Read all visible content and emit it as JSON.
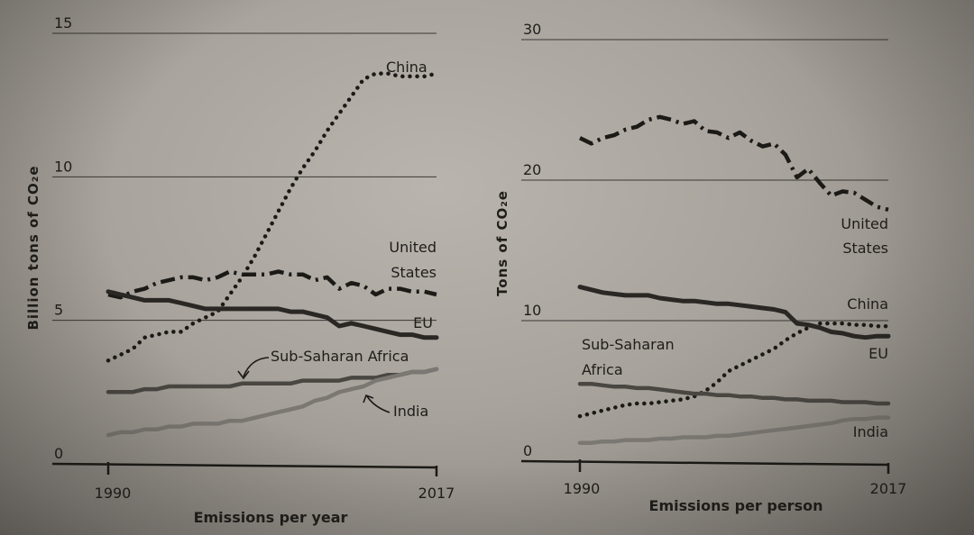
{
  "chart_data": [
    {
      "type": "line",
      "xlabel": "Emissions per year",
      "ylabel": "Billion tons of CO₂e",
      "ylim": [
        0,
        15
      ],
      "yticks": [
        "0",
        "5",
        "10",
        "15"
      ],
      "xticks": [
        "1990",
        "2017"
      ],
      "grid": true,
      "series": [
        {
          "name": "China",
          "style": "dotted",
          "x": [
            1990,
            1991,
            1992,
            1993,
            1994,
            1995,
            1996,
            1997,
            1998,
            1999,
            2000,
            2001,
            2002,
            2003,
            2004,
            2005,
            2006,
            2007,
            2008,
            2009,
            2010,
            2011,
            2012,
            2013,
            2014,
            2015,
            2016,
            2017
          ],
          "values": [
            3.6,
            3.8,
            4.0,
            4.4,
            4.5,
            4.6,
            4.6,
            4.9,
            5.1,
            5.3,
            5.9,
            6.5,
            7.2,
            8.0,
            8.8,
            9.6,
            10.3,
            10.9,
            11.6,
            12.2,
            12.8,
            13.4,
            13.6,
            13.6,
            13.5,
            13.5,
            13.5,
            13.6
          ]
        },
        {
          "name": "United\nStates",
          "style": "dash-dot",
          "x": [
            1990,
            1991,
            1992,
            1993,
            1994,
            1995,
            1996,
            1997,
            1998,
            1999,
            2000,
            2001,
            2002,
            2003,
            2004,
            2005,
            2006,
            2007,
            2008,
            2009,
            2010,
            2011,
            2012,
            2013,
            2014,
            2015,
            2016,
            2017
          ],
          "values": [
            5.9,
            5.8,
            6.0,
            6.1,
            6.3,
            6.4,
            6.5,
            6.5,
            6.4,
            6.5,
            6.7,
            6.6,
            6.6,
            6.6,
            6.7,
            6.6,
            6.6,
            6.4,
            6.5,
            6.1,
            6.3,
            6.2,
            5.9,
            6.1,
            6.1,
            6.0,
            6.0,
            5.9
          ]
        },
        {
          "name": "EU",
          "style": "solid-thick",
          "x": [
            1990,
            1991,
            1992,
            1993,
            1994,
            1995,
            1996,
            1997,
            1998,
            1999,
            2000,
            2001,
            2002,
            2003,
            2004,
            2005,
            2006,
            2007,
            2008,
            2009,
            2010,
            2011,
            2012,
            2013,
            2014,
            2015,
            2016,
            2017
          ],
          "values": [
            6.0,
            5.9,
            5.8,
            5.7,
            5.7,
            5.7,
            5.6,
            5.5,
            5.4,
            5.4,
            5.4,
            5.4,
            5.4,
            5.4,
            5.4,
            5.3,
            5.3,
            5.2,
            5.1,
            4.8,
            4.9,
            4.8,
            4.7,
            4.6,
            4.5,
            4.5,
            4.4,
            4.4
          ]
        },
        {
          "name": "Sub-Saharan Africa",
          "style": "solid-medium",
          "x": [
            1990,
            1991,
            1992,
            1993,
            1994,
            1995,
            1996,
            1997,
            1998,
            1999,
            2000,
            2001,
            2002,
            2003,
            2004,
            2005,
            2006,
            2007,
            2008,
            2009,
            2010,
            2011,
            2012,
            2013,
            2014,
            2015,
            2016,
            2017
          ],
          "values": [
            2.5,
            2.5,
            2.5,
            2.6,
            2.6,
            2.7,
            2.7,
            2.7,
            2.7,
            2.7,
            2.7,
            2.8,
            2.8,
            2.8,
            2.8,
            2.8,
            2.9,
            2.9,
            2.9,
            2.9,
            3.0,
            3.0,
            3.0,
            3.1,
            3.1,
            3.2,
            3.2,
            3.3
          ]
        },
        {
          "name": "India",
          "style": "solid-light",
          "x": [
            1990,
            1991,
            1992,
            1993,
            1994,
            1995,
            1996,
            1997,
            1998,
            1999,
            2000,
            2001,
            2002,
            2003,
            2004,
            2005,
            2006,
            2007,
            2008,
            2009,
            2010,
            2011,
            2012,
            2013,
            2014,
            2015,
            2016,
            2017
          ],
          "values": [
            1.0,
            1.1,
            1.1,
            1.2,
            1.2,
            1.3,
            1.3,
            1.4,
            1.4,
            1.4,
            1.5,
            1.5,
            1.6,
            1.7,
            1.8,
            1.9,
            2.0,
            2.2,
            2.3,
            2.5,
            2.6,
            2.7,
            2.9,
            3.0,
            3.1,
            3.2,
            3.2,
            3.3
          ]
        }
      ]
    },
    {
      "type": "line",
      "xlabel": "Emissions per person",
      "ylabel": "Tons of CO₂e",
      "ylim": [
        0,
        30
      ],
      "yticks": [
        "0",
        "10",
        "20",
        "30"
      ],
      "xticks": [
        "1990",
        "2017"
      ],
      "grid": true,
      "series": [
        {
          "name": "United\nStates",
          "style": "dash-dot",
          "x": [
            1990,
            1991,
            1992,
            1993,
            1994,
            1995,
            1996,
            1997,
            1998,
            1999,
            2000,
            2001,
            2002,
            2003,
            2004,
            2005,
            2006,
            2007,
            2008,
            2009,
            2010,
            2011,
            2012,
            2013,
            2014,
            2015,
            2016,
            2017
          ],
          "values": [
            23.0,
            22.6,
            23.0,
            23.2,
            23.6,
            23.8,
            24.3,
            24.5,
            24.3,
            24.0,
            24.2,
            23.5,
            23.4,
            23.0,
            23.4,
            22.8,
            22.4,
            22.6,
            21.8,
            20.2,
            20.8,
            19.8,
            18.9,
            19.2,
            19.1,
            18.6,
            18.1,
            17.9
          ]
        },
        {
          "name": "China",
          "style": "dotted",
          "x": [
            1990,
            1991,
            1992,
            1993,
            1994,
            1995,
            1996,
            1997,
            1998,
            1999,
            2000,
            2001,
            2002,
            2003,
            2004,
            2005,
            2006,
            2007,
            2008,
            2009,
            2010,
            2011,
            2012,
            2013,
            2014,
            2015,
            2016,
            2017
          ],
          "values": [
            3.2,
            3.4,
            3.6,
            3.8,
            4.0,
            4.1,
            4.1,
            4.2,
            4.3,
            4.4,
            4.6,
            5.0,
            5.6,
            6.4,
            6.8,
            7.2,
            7.6,
            8.0,
            8.6,
            9.1,
            9.5,
            9.8,
            9.8,
            9.8,
            9.7,
            9.7,
            9.6,
            9.6
          ]
        },
        {
          "name": "EU",
          "style": "solid-thick",
          "x": [
            1990,
            1991,
            1992,
            1993,
            1994,
            1995,
            1996,
            1997,
            1998,
            1999,
            2000,
            2001,
            2002,
            2003,
            2004,
            2005,
            2006,
            2007,
            2008,
            2009,
            2010,
            2011,
            2012,
            2013,
            2014,
            2015,
            2016,
            2017
          ],
          "values": [
            12.4,
            12.2,
            12.0,
            11.9,
            11.8,
            11.8,
            11.8,
            11.6,
            11.5,
            11.4,
            11.4,
            11.3,
            11.2,
            11.2,
            11.1,
            11.0,
            10.9,
            10.8,
            10.6,
            9.8,
            9.7,
            9.5,
            9.2,
            9.1,
            8.9,
            8.8,
            8.9,
            8.9
          ]
        },
        {
          "name": "Sub-Saharan\nAfrica",
          "style": "solid-medium",
          "x": [
            1990,
            1991,
            1992,
            1993,
            1994,
            1995,
            1996,
            1997,
            1998,
            1999,
            2000,
            2001,
            2002,
            2003,
            2004,
            2005,
            2006,
            2007,
            2008,
            2009,
            2010,
            2011,
            2012,
            2013,
            2014,
            2015,
            2016,
            2017
          ],
          "values": [
            5.5,
            5.5,
            5.4,
            5.3,
            5.3,
            5.2,
            5.2,
            5.1,
            5.0,
            4.9,
            4.8,
            4.8,
            4.7,
            4.7,
            4.6,
            4.6,
            4.5,
            4.5,
            4.4,
            4.4,
            4.3,
            4.3,
            4.3,
            4.2,
            4.2,
            4.2,
            4.1,
            4.1
          ]
        },
        {
          "name": "India",
          "style": "solid-light",
          "x": [
            1990,
            1991,
            1992,
            1993,
            1994,
            1995,
            1996,
            1997,
            1998,
            1999,
            2000,
            2001,
            2002,
            2003,
            2004,
            2005,
            2006,
            2007,
            2008,
            2009,
            2010,
            2011,
            2012,
            2013,
            2014,
            2015,
            2016,
            2017
          ],
          "values": [
            1.3,
            1.3,
            1.4,
            1.4,
            1.5,
            1.5,
            1.5,
            1.6,
            1.6,
            1.7,
            1.7,
            1.7,
            1.8,
            1.8,
            1.9,
            2.0,
            2.1,
            2.2,
            2.3,
            2.4,
            2.5,
            2.6,
            2.7,
            2.9,
            3.0,
            3.0,
            3.1,
            3.1
          ]
        }
      ]
    }
  ]
}
